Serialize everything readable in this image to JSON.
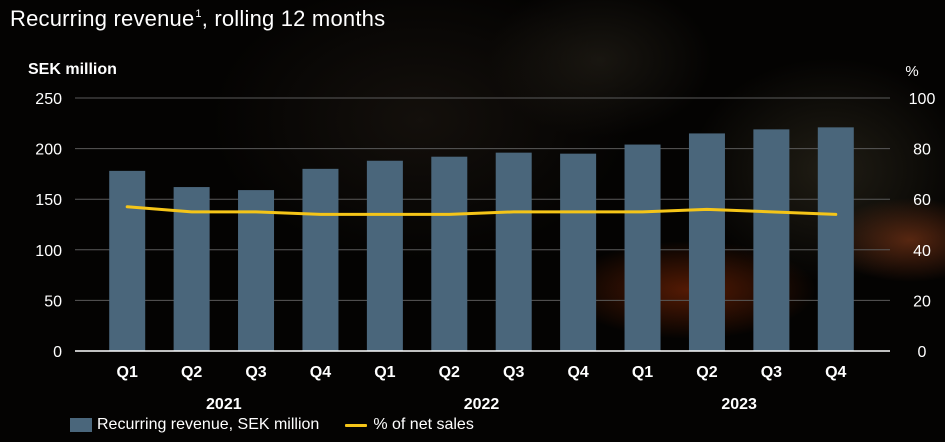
{
  "title": {
    "text": "Recurring revenue",
    "footnote": "1",
    "suffix": ", rolling 12 months"
  },
  "chart_data": {
    "type": "bar",
    "title": "Recurring revenue, rolling 12 months",
    "ylabel_left": "SEK million",
    "ylabel_right": "%",
    "ylim_left": [
      0,
      250
    ],
    "ylim_right": [
      0,
      100
    ],
    "yticks_left": [
      "0",
      "50",
      "100",
      "150",
      "200",
      "250"
    ],
    "yticks_right": [
      "0",
      "20",
      "40",
      "60",
      "80",
      "100"
    ],
    "grid": true,
    "legend_position": "bottom-left",
    "categories": [
      "Q1",
      "Q2",
      "Q3",
      "Q4",
      "Q1",
      "Q2",
      "Q3",
      "Q4",
      "Q1",
      "Q2",
      "Q3",
      "Q4"
    ],
    "year_groups": [
      {
        "label": "2021",
        "count": 4
      },
      {
        "label": "2022",
        "count": 4
      },
      {
        "label": "2023",
        "count": 4
      }
    ],
    "series": [
      {
        "name": "Recurring revenue, SEK million",
        "type": "bar",
        "axis": "left",
        "color": "#4a667b",
        "values": [
          178,
          162,
          159,
          180,
          188,
          192,
          196,
          195,
          204,
          215,
          219,
          221
        ]
      },
      {
        "name": "% of net sales",
        "type": "line",
        "axis": "right",
        "color": "#f5c518",
        "values": [
          57,
          55,
          55,
          54,
          54,
          54,
          55,
          55,
          55,
          56,
          55,
          54
        ]
      }
    ]
  }
}
